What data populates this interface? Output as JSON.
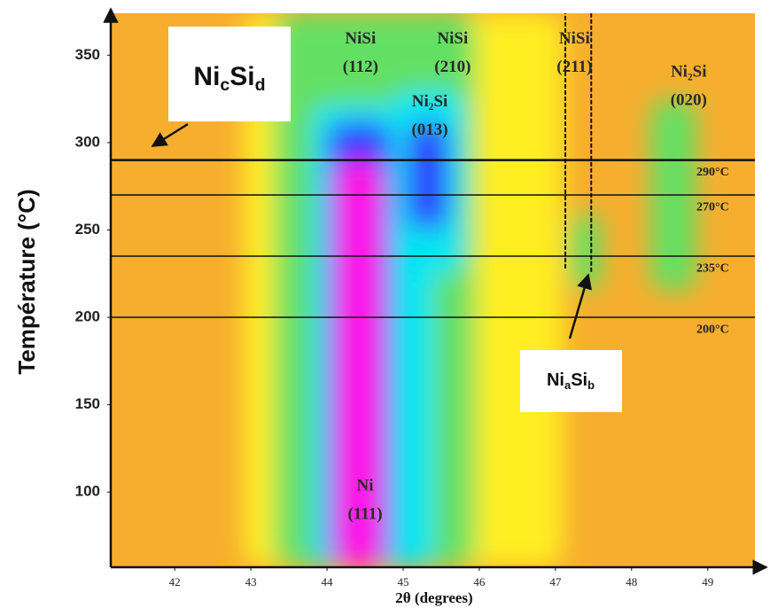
{
  "chart_data": {
    "type": "heatmap",
    "x_label": "2θ (degrees)",
    "y_label": "Température (°C)",
    "xlim": [
      41.16,
      49.62
    ],
    "xticks": [
      42,
      43,
      44,
      45,
      46,
      47,
      48,
      49
    ],
    "ylim": [
      57,
      374
    ],
    "yticks": [
      100,
      150,
      200,
      250,
      300,
      350
    ],
    "background": "#f7ae2e",
    "colorscale": [
      "#ffee22",
      "#63e063",
      "#00e6f2",
      "#2f3cff",
      "#ff12e6"
    ],
    "regions": [
      [
        42.9,
        47.1,
        57,
        374,
        0
      ],
      [
        43.3,
        45.95,
        57,
        374,
        1
      ],
      [
        47.2,
        47.6,
        215,
        260,
        1
      ],
      [
        48.25,
        48.85,
        215,
        325,
        1
      ],
      [
        43.8,
        45.4,
        57,
        322,
        2
      ],
      [
        44.85,
        45.8,
        225,
        330,
        2
      ],
      [
        44.0,
        44.85,
        57,
        312,
        3
      ],
      [
        45.05,
        45.6,
        250,
        312,
        3
      ],
      [
        44.12,
        44.72,
        57,
        290,
        4
      ]
    ],
    "lines": [
      {
        "value": 290,
        "label": "290°C"
      },
      {
        "value": 270,
        "label": "270°C"
      },
      {
        "value": 235,
        "label": "235°C"
      },
      {
        "value": 200,
        "label": "200°C"
      }
    ],
    "markers": [
      {
        "x": 47.13,
        "tmin": 228,
        "tmax": 374
      },
      {
        "x": 47.47,
        "tmin": 226,
        "tmax": 374
      }
    ],
    "peaks": [
      {
        "text": "NiSi",
        "hkl": "(112)",
        "x": 44.44,
        "t": 359
      },
      {
        "text": "NiSi",
        "hkl": "(210)",
        "x": 45.65,
        "t": 359
      },
      {
        "text": "NiSi",
        "hkl": "(211)",
        "x": 47.25,
        "t": 359
      },
      {
        "text": "Ni₂Si",
        "hkl": "(020)",
        "x": 48.75,
        "t": 340
      },
      {
        "text": "Ni₂Si",
        "hkl": "(013)",
        "x": 45.35,
        "t": 323
      },
      {
        "text": "Ni",
        "hkl": "(111)",
        "x": 44.5,
        "t": 103
      }
    ],
    "boxes": [
      {
        "parts": [
          "Ni",
          "c",
          "Si",
          "d"
        ]
      },
      {
        "parts": [
          "Ni",
          "a",
          "Si",
          "b"
        ]
      }
    ]
  }
}
